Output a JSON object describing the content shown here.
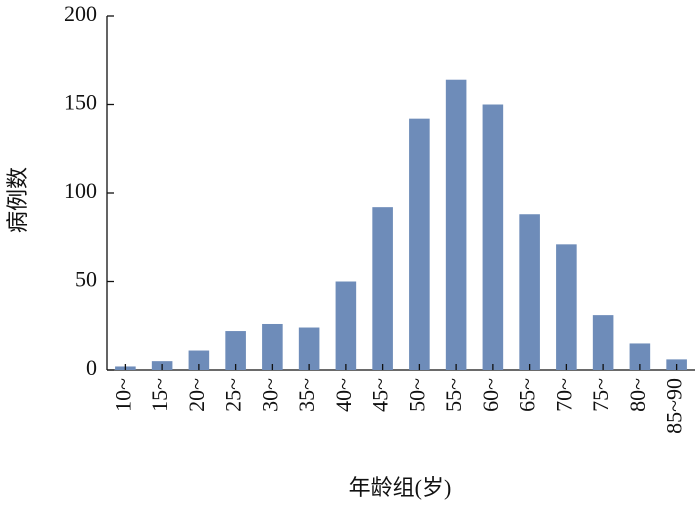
{
  "chart_data": {
    "type": "bar",
    "x_label": "年龄组(岁)",
    "y_label": "病例数",
    "categories": [
      "10~",
      "15~",
      "20~",
      "25~",
      "30~",
      "35~",
      "40~",
      "45~",
      "50~",
      "55~",
      "60~",
      "65~",
      "70~",
      "75~",
      "80~",
      "85~90"
    ],
    "values": [
      2,
      5,
      11,
      22,
      26,
      24,
      50,
      92,
      142,
      164,
      150,
      88,
      71,
      31,
      15,
      6
    ],
    "color": "#6e8cb9",
    "ylim": [
      0,
      200
    ],
    "yticks": [
      0,
      50,
      100,
      150,
      200
    ],
    "grid": false
  }
}
